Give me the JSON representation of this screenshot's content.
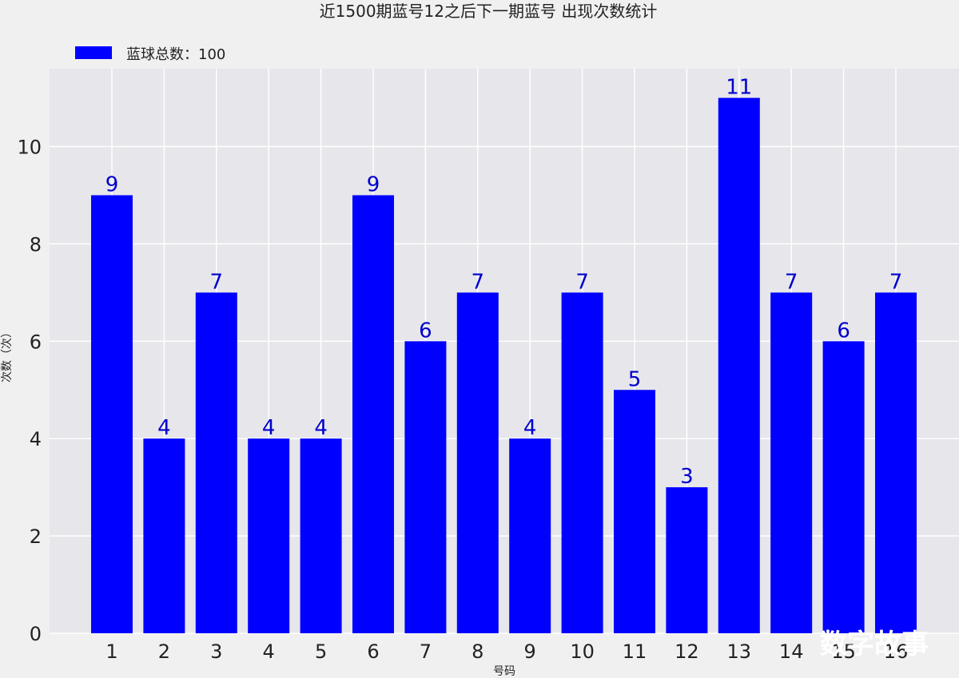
{
  "colors": {
    "bar": "#0000ff",
    "value_label": "#0000cc",
    "plot_background": "#e6e6eb",
    "page_background": "#f0f0f0",
    "grid": "#ffffff",
    "text": "#222222"
  },
  "chart_data": {
    "type": "bar",
    "title": "近1500期蓝号12之后下一期蓝号 出现次数统计",
    "xlabel": "号码",
    "ylabel": "次数（次）",
    "categories": [
      "1",
      "2",
      "3",
      "4",
      "5",
      "6",
      "7",
      "8",
      "9",
      "10",
      "11",
      "12",
      "13",
      "14",
      "15",
      "16"
    ],
    "series": [
      {
        "name": "蓝球总数：100",
        "values": [
          9,
          4,
          7,
          4,
          4,
          9,
          6,
          7,
          4,
          7,
          5,
          3,
          11,
          7,
          6,
          7
        ]
      }
    ],
    "ylim": [
      0,
      11.6
    ],
    "yticks": [
      0,
      2,
      4,
      6,
      8,
      10
    ],
    "grid": true,
    "legend": "top-left",
    "data_labels": true
  },
  "watermark": "数字故事"
}
